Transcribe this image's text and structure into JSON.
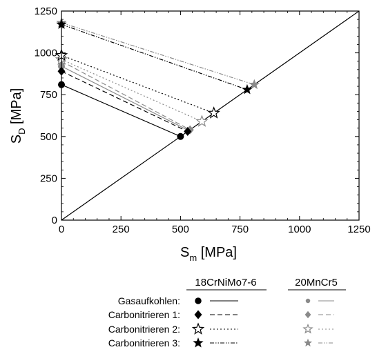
{
  "chart_data": {
    "type": "line",
    "xlabel": {
      "main": "S",
      "sub": "m",
      "unit": " [MPa]"
    },
    "ylabel": {
      "main": "S",
      "sub": "D",
      "unit": " [MPa]"
    },
    "xlim": [
      0,
      1250
    ],
    "ylim": [
      0,
      1250
    ],
    "xticks": [
      "0",
      "250",
      "500",
      "750",
      "1000",
      "1250"
    ],
    "yticks": [
      "0",
      "250",
      "500",
      "750",
      "1000",
      "1250"
    ],
    "grid": false,
    "reference_line": {
      "from": [
        0,
        0
      ],
      "to": [
        1250,
        1250
      ]
    },
    "materials": [
      {
        "name": "18CrNiMo7-6",
        "color": "#000000"
      },
      {
        "name": "20MnCr5",
        "color": "#8a8a8a"
      }
    ],
    "treatments": [
      {
        "label": "Gasaufkohlen:",
        "marker": "circle",
        "dash": "solid"
      },
      {
        "label": "Carbonitrieren 1:",
        "marker": "diamond",
        "dash": "dashed"
      },
      {
        "label": "Carbonitrieren 2:",
        "marker": "star-open",
        "dash": "dotted"
      },
      {
        "label": "Carbonitrieren 3:",
        "marker": "star-filled",
        "dash": "dashdotdot"
      }
    ],
    "series": [
      {
        "material": "18CrNiMo7-6",
        "treatment": "Gasaufkohlen:",
        "points": [
          [
            0,
            810
          ],
          [
            500,
            500
          ]
        ]
      },
      {
        "material": "18CrNiMo7-6",
        "treatment": "Carbonitrieren 1:",
        "points": [
          [
            0,
            890
          ],
          [
            530,
            530
          ]
        ]
      },
      {
        "material": "18CrNiMo7-6",
        "treatment": "Carbonitrieren 2:",
        "points": [
          [
            0,
            985
          ],
          [
            640,
            640
          ]
        ]
      },
      {
        "material": "18CrNiMo7-6",
        "treatment": "Carbonitrieren 3:",
        "points": [
          [
            0,
            1170
          ],
          [
            780,
            780
          ]
        ]
      },
      {
        "material": "20MnCr5",
        "treatment": "Gasaufkohlen:",
        "points": [
          [
            0,
            920
          ],
          [
            535,
            535
          ]
        ]
      },
      {
        "material": "20MnCr5",
        "treatment": "Carbonitrieren 1:",
        "points": [
          [
            0,
            950
          ],
          [
            540,
            540
          ]
        ]
      },
      {
        "material": "20MnCr5",
        "treatment": "Carbonitrieren 2:",
        "points": [
          [
            0,
            960
          ],
          [
            590,
            590
          ]
        ]
      },
      {
        "material": "20MnCr5",
        "treatment": "Carbonitrieren 3:",
        "points": [
          [
            0,
            1180
          ],
          [
            810,
            810
          ]
        ]
      }
    ]
  }
}
